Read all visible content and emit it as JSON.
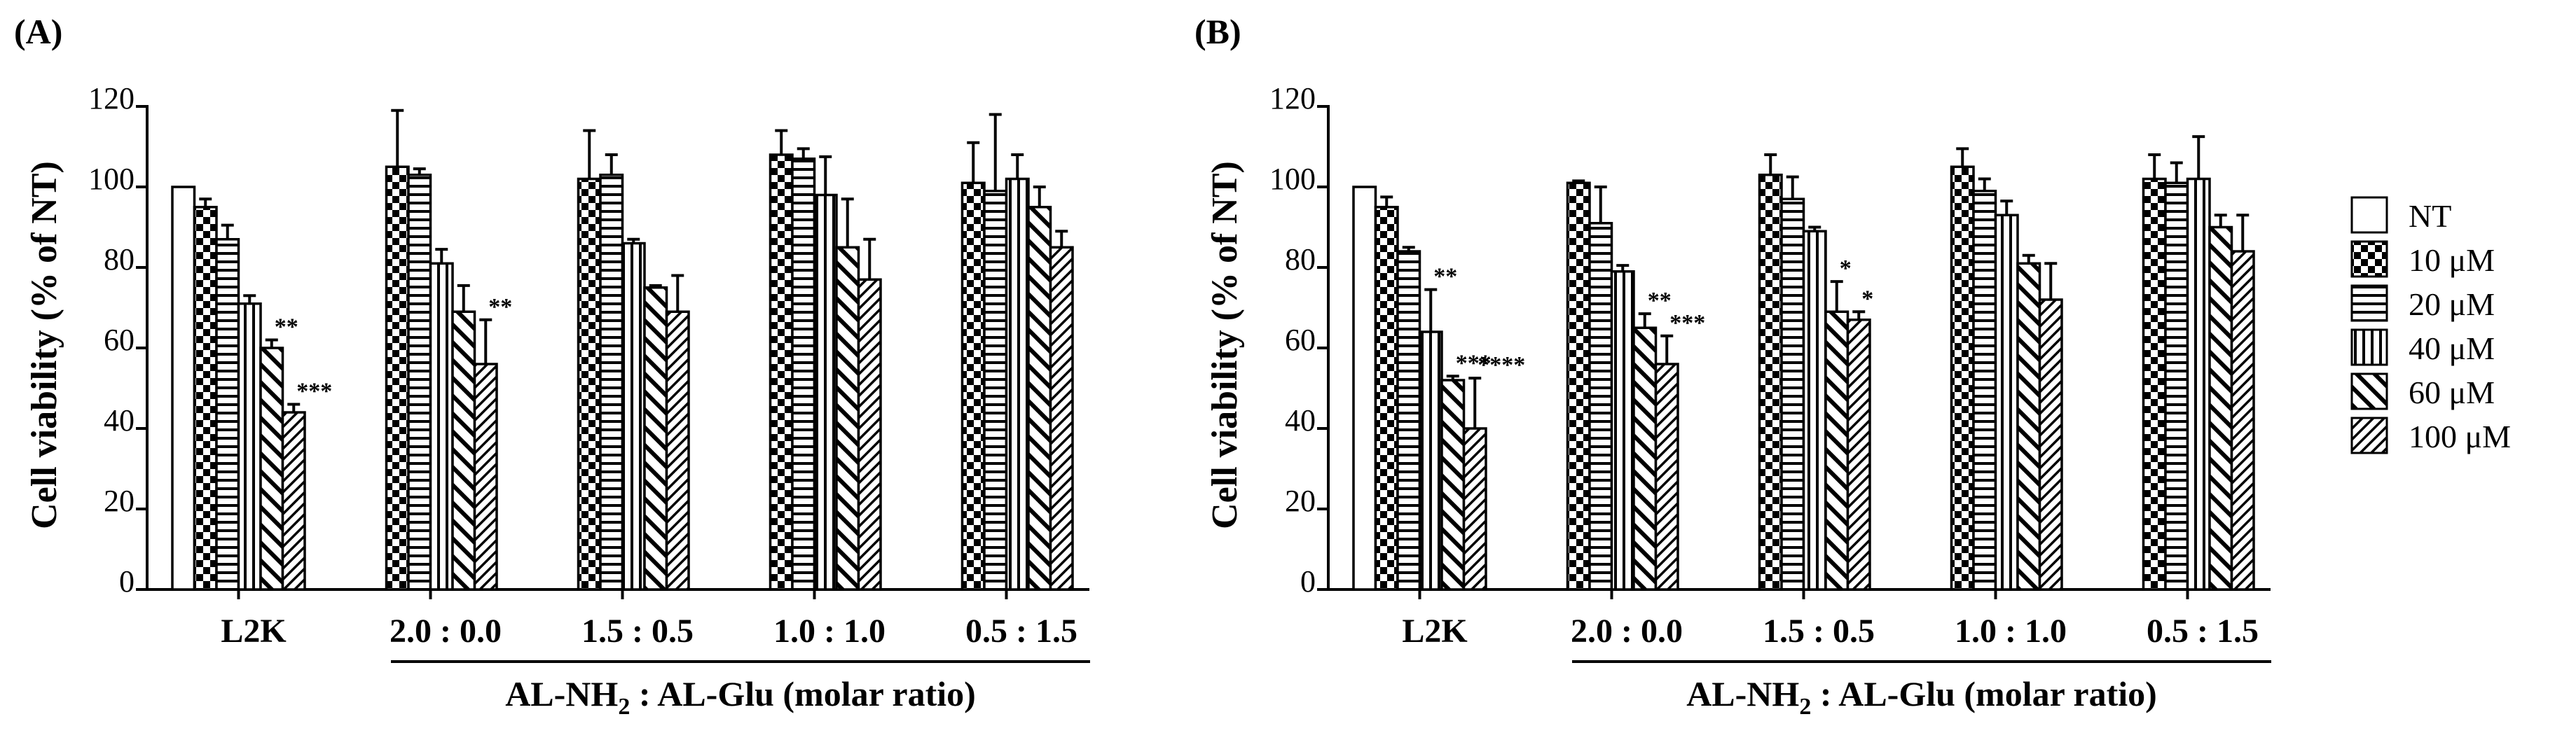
{
  "figure": {
    "series_names": [
      "NT",
      "10 μM",
      "20 μM",
      "40 μM",
      "60 μM",
      "100 μM"
    ],
    "series_patterns": [
      "solid-white",
      "checker",
      "horizontal",
      "vertical",
      "diag-wide",
      "diag-narrow"
    ],
    "colors": {
      "ink": "#000000",
      "paper": "#ffffff"
    }
  },
  "chart_data": [
    {
      "type": "bar",
      "panel": "(A)",
      "ylabel": "Cell viability (% of NT)",
      "ylim": [
        0,
        120
      ],
      "yticks": [
        "0",
        "20",
        "40",
        "60",
        "80",
        "100",
        "120"
      ],
      "categories": [
        "L2K",
        "2.0 : 0.0",
        "1.5 : 0.5",
        "1.0 : 1.0",
        "0.5 : 1.5"
      ],
      "group_label": {
        "prefix": "AL-NH",
        "sub": "2",
        "suffix": " : AL-Glu (molar ratio)"
      },
      "series": [
        {
          "name": "NT",
          "values": [
            100,
            null,
            null,
            null,
            null
          ],
          "errors": [
            0,
            0,
            0,
            0,
            0
          ]
        },
        {
          "name": "10 μM",
          "values": [
            95,
            105,
            102,
            108,
            101
          ],
          "errors": [
            2,
            14,
            12,
            6,
            10
          ]
        },
        {
          "name": "20 μM",
          "values": [
            87,
            103,
            103,
            107,
            99
          ],
          "errors": [
            3.5,
            1.5,
            5,
            2.5,
            19
          ]
        },
        {
          "name": "40 μM",
          "values": [
            71,
            81,
            86,
            98,
            102
          ],
          "errors": [
            2,
            3.5,
            1,
            9.5,
            6
          ]
        },
        {
          "name": "60 μM",
          "values": [
            60,
            69,
            75,
            85,
            95
          ],
          "errors": [
            2,
            6.5,
            0.5,
            12,
            5
          ]
        },
        {
          "name": "100 μM",
          "values": [
            44,
            56,
            69,
            77,
            85
          ],
          "errors": [
            2,
            11,
            9,
            10,
            4
          ]
        }
      ],
      "significance": [
        {
          "category": 0,
          "series": 4,
          "label": "**"
        },
        {
          "category": 0,
          "series": 5,
          "label": "***"
        },
        {
          "category": 1,
          "series": 5,
          "label": "**"
        }
      ]
    },
    {
      "type": "bar",
      "panel": "(B)",
      "ylabel": "Cell viability (% of NT)",
      "ylim": [
        0,
        120
      ],
      "yticks": [
        "0",
        "20",
        "40",
        "60",
        "80",
        "100",
        "120"
      ],
      "categories": [
        "L2K",
        "2.0 : 0.0",
        "1.5 : 0.5",
        "1.0 : 1.0",
        "0.5 : 1.5"
      ],
      "group_label": {
        "prefix": "AL-NH",
        "sub": "2",
        "suffix": " : AL-Glu (molar ratio)"
      },
      "series": [
        {
          "name": "NT",
          "values": [
            100,
            null,
            null,
            null,
            null
          ],
          "errors": [
            0,
            0,
            0,
            0,
            0
          ]
        },
        {
          "name": "10 μM",
          "values": [
            95,
            101,
            103,
            105,
            102
          ],
          "errors": [
            2.5,
            0.5,
            5,
            4.5,
            6
          ]
        },
        {
          "name": "20 μM",
          "values": [
            84,
            91,
            97,
            99,
            101
          ],
          "errors": [
            1,
            9,
            5.5,
            3,
            5
          ]
        },
        {
          "name": "40 μM",
          "values": [
            64,
            79,
            89,
            93,
            102
          ],
          "errors": [
            10.5,
            1.5,
            1,
            3.5,
            10.5
          ]
        },
        {
          "name": "60 μM",
          "values": [
            52,
            65,
            69,
            81,
            90
          ],
          "errors": [
            1,
            3.5,
            7.5,
            2,
            3
          ]
        },
        {
          "name": "100 μM",
          "values": [
            40,
            56,
            67,
            72,
            84
          ],
          "errors": [
            12.5,
            7,
            2,
            9,
            9
          ]
        }
      ],
      "significance": [
        {
          "category": 0,
          "series": 3,
          "label": "**"
        },
        {
          "category": 0,
          "series": 4,
          "label": "***"
        },
        {
          "category": 0,
          "series": 5,
          "label": "****"
        },
        {
          "category": 1,
          "series": 4,
          "label": "**"
        },
        {
          "category": 1,
          "series": 5,
          "label": "***"
        },
        {
          "category": 2,
          "series": 4,
          "label": "*"
        },
        {
          "category": 2,
          "series": 5,
          "label": "*"
        }
      ]
    }
  ]
}
